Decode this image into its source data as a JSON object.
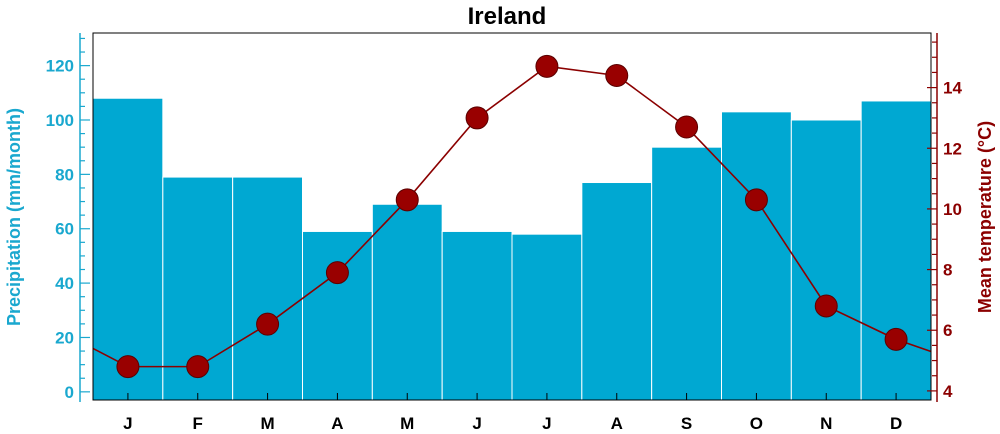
{
  "chart_data": {
    "type": "bar+line",
    "title": "Ireland",
    "categories": [
      "J",
      "F",
      "M",
      "A",
      "M",
      "J",
      "J",
      "A",
      "S",
      "O",
      "N",
      "D"
    ],
    "precipitation": {
      "name": "Precipitation",
      "axis": "left",
      "ylabel": "Precipitation (mm/month)",
      "ylim": [
        -3,
        132
      ],
      "ticks": [
        0,
        20,
        40,
        60,
        80,
        100,
        120
      ],
      "values": [
        108,
        79,
        79,
        59,
        69,
        59,
        58,
        77,
        90,
        103,
        100,
        107
      ],
      "color": "#00a8d2"
    },
    "temperature": {
      "name": "Mean temperature",
      "axis": "right",
      "ylabel": "Mean temperature (°C)",
      "ylim": [
        3.7,
        15.8
      ],
      "ticks": [
        4,
        6,
        8,
        10,
        12,
        14
      ],
      "values": [
        4.8,
        4.8,
        6.2,
        7.9,
        10.3,
        13.0,
        14.7,
        14.4,
        12.7,
        10.3,
        6.8,
        5.7
      ],
      "edge_left": 5.4,
      "edge_right": 5.3,
      "color": "#8b0000",
      "marker_color": "#990000"
    },
    "grid": false,
    "legend": "none"
  }
}
